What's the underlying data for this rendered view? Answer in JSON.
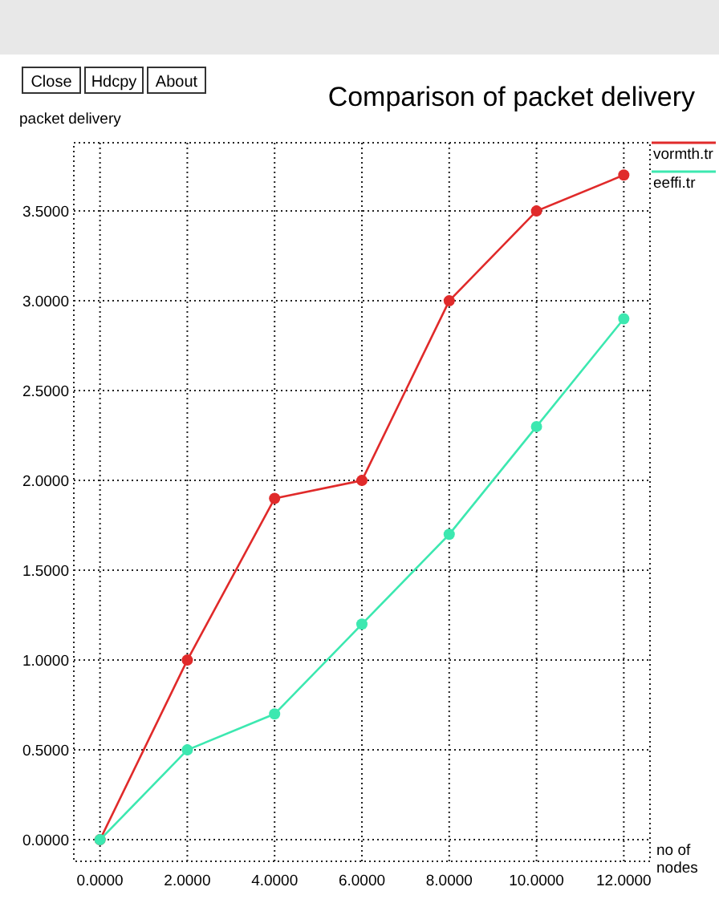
{
  "chart_data": {
    "type": "line",
    "title": "Comparison of packet delivery",
    "xlabel": "no of nodes",
    "ylabel": "packet delivery",
    "annotations": [
      "Close",
      "Hdcpy",
      "About"
    ],
    "x": [
      0,
      2,
      4,
      6,
      8,
      10,
      12
    ],
    "series": [
      {
        "name": "vormth.tr",
        "color": "#e02a2a",
        "values": [
          0,
          1.0,
          1.9,
          2.0,
          3.0,
          3.5,
          3.7
        ]
      },
      {
        "name": "eeffi.tr",
        "color": "#3ce8b0",
        "values": [
          0,
          0.5,
          0.7,
          1.2,
          1.7,
          2.3,
          2.9
        ]
      }
    ],
    "xlim": [
      -0.6,
      12.6
    ],
    "ylim": [
      -0.12,
      3.88
    ],
    "xticks": [
      {
        "value": 0,
        "label": "0.0000"
      },
      {
        "value": 2,
        "label": "2.0000"
      },
      {
        "value": 4,
        "label": "4.0000"
      },
      {
        "value": 6,
        "label": "6.0000"
      },
      {
        "value": 8,
        "label": "8.0000"
      },
      {
        "value": 10,
        "label": "10.0000"
      },
      {
        "value": 12,
        "label": "12.0000"
      }
    ],
    "yticks": [
      {
        "value": 0,
        "label": "0.0000"
      },
      {
        "value": 0.5,
        "label": "0.5000"
      },
      {
        "value": 1,
        "label": "1.0000"
      },
      {
        "value": 1.5,
        "label": "1.5000"
      },
      {
        "value": 2,
        "label": "2.0000"
      },
      {
        "value": 2.5,
        "label": "2.5000"
      },
      {
        "value": 3,
        "label": "3.0000"
      },
      {
        "value": 3.5,
        "label": "3.5000"
      }
    ],
    "grid": true,
    "legend": "top right",
    "marker": "circle",
    "line_style": "solid"
  }
}
